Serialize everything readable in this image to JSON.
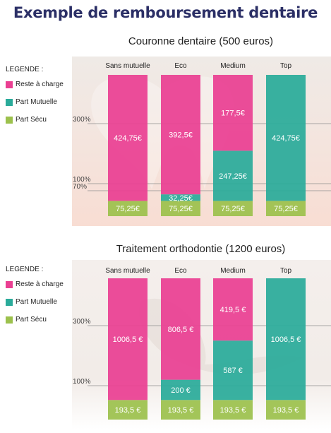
{
  "title": "Exemple de remboursement dentaire",
  "colors": {
    "reste": "#ea3f92",
    "mutuelle": "#2aab9a",
    "secu": "#9cc14c",
    "title": "#2b2f66"
  },
  "chart_data": [
    {
      "type": "bar",
      "stacked": true,
      "title": "Couronne dentaire (500 euros)",
      "legend": {
        "heading": "LEGENDE :",
        "items": [
          {
            "label": "Reste à charge",
            "color": "#ea3f92"
          },
          {
            "label": "Part Mutuelle",
            "color": "#2aab9a"
          },
          {
            "label": "Part Sécu",
            "color": "#9cc14c"
          }
        ]
      },
      "y_ticks": [
        {
          "label": "300%",
          "value": 300
        },
        {
          "label": "100%",
          "value": 100
        },
        {
          "label": "70%",
          "value": 70
        }
      ],
      "categories": [
        "Sans mutuelle",
        "Eco",
        "Medium",
        "Top"
      ],
      "series": [
        {
          "name": "Part Sécu",
          "color": "#9cc14c",
          "values": [
            75.25,
            75.25,
            75.25,
            75.25
          ],
          "labels": [
            "75,25€",
            "75,25€",
            "75,25€",
            "75,25€"
          ]
        },
        {
          "name": "Part Mutuelle",
          "color": "#2aab9a",
          "values": [
            0,
            32.25,
            247.25,
            424.75
          ],
          "labels": [
            "",
            "32,25€",
            "247,25€",
            "424,75€"
          ]
        },
        {
          "name": "Reste à charge",
          "color": "#ea3f92",
          "values": [
            424.75,
            392.5,
            177.5,
            0
          ],
          "labels": [
            "424,75€",
            "392,5€",
            "177,5€",
            ""
          ]
        }
      ]
    },
    {
      "type": "bar",
      "stacked": true,
      "title": "Traitement orthodontie (1200 euros)",
      "legend": {
        "heading": "LEGENDE :",
        "items": [
          {
            "label": "Reste à charge",
            "color": "#ea3f92"
          },
          {
            "label": "Part Mutuelle",
            "color": "#2aab9a"
          },
          {
            "label": "Part Sécu",
            "color": "#9cc14c"
          }
        ]
      },
      "y_ticks": [
        {
          "label": "300%",
          "value": 300
        },
        {
          "label": "100%",
          "value": 100
        }
      ],
      "categories": [
        "Sans mutuelle",
        "Eco",
        "Medium",
        "Top"
      ],
      "series": [
        {
          "name": "Part Sécu",
          "color": "#9cc14c",
          "values": [
            193.5,
            193.5,
            193.5,
            193.5
          ],
          "labels": [
            "193,5 €",
            "193,5 €",
            "193,5 €",
            "193,5 €"
          ]
        },
        {
          "name": "Part Mutuelle",
          "color": "#2aab9a",
          "values": [
            0,
            200,
            587,
            1006.5
          ],
          "labels": [
            "",
            "200 €",
            "587 €",
            "1006,5 €"
          ]
        },
        {
          "name": "Reste à charge",
          "color": "#ea3f92",
          "values": [
            1006.5,
            806.5,
            419.5,
            0
          ],
          "labels": [
            "1006,5 €",
            "806,5 €",
            "419,5 €",
            ""
          ]
        }
      ]
    }
  ]
}
